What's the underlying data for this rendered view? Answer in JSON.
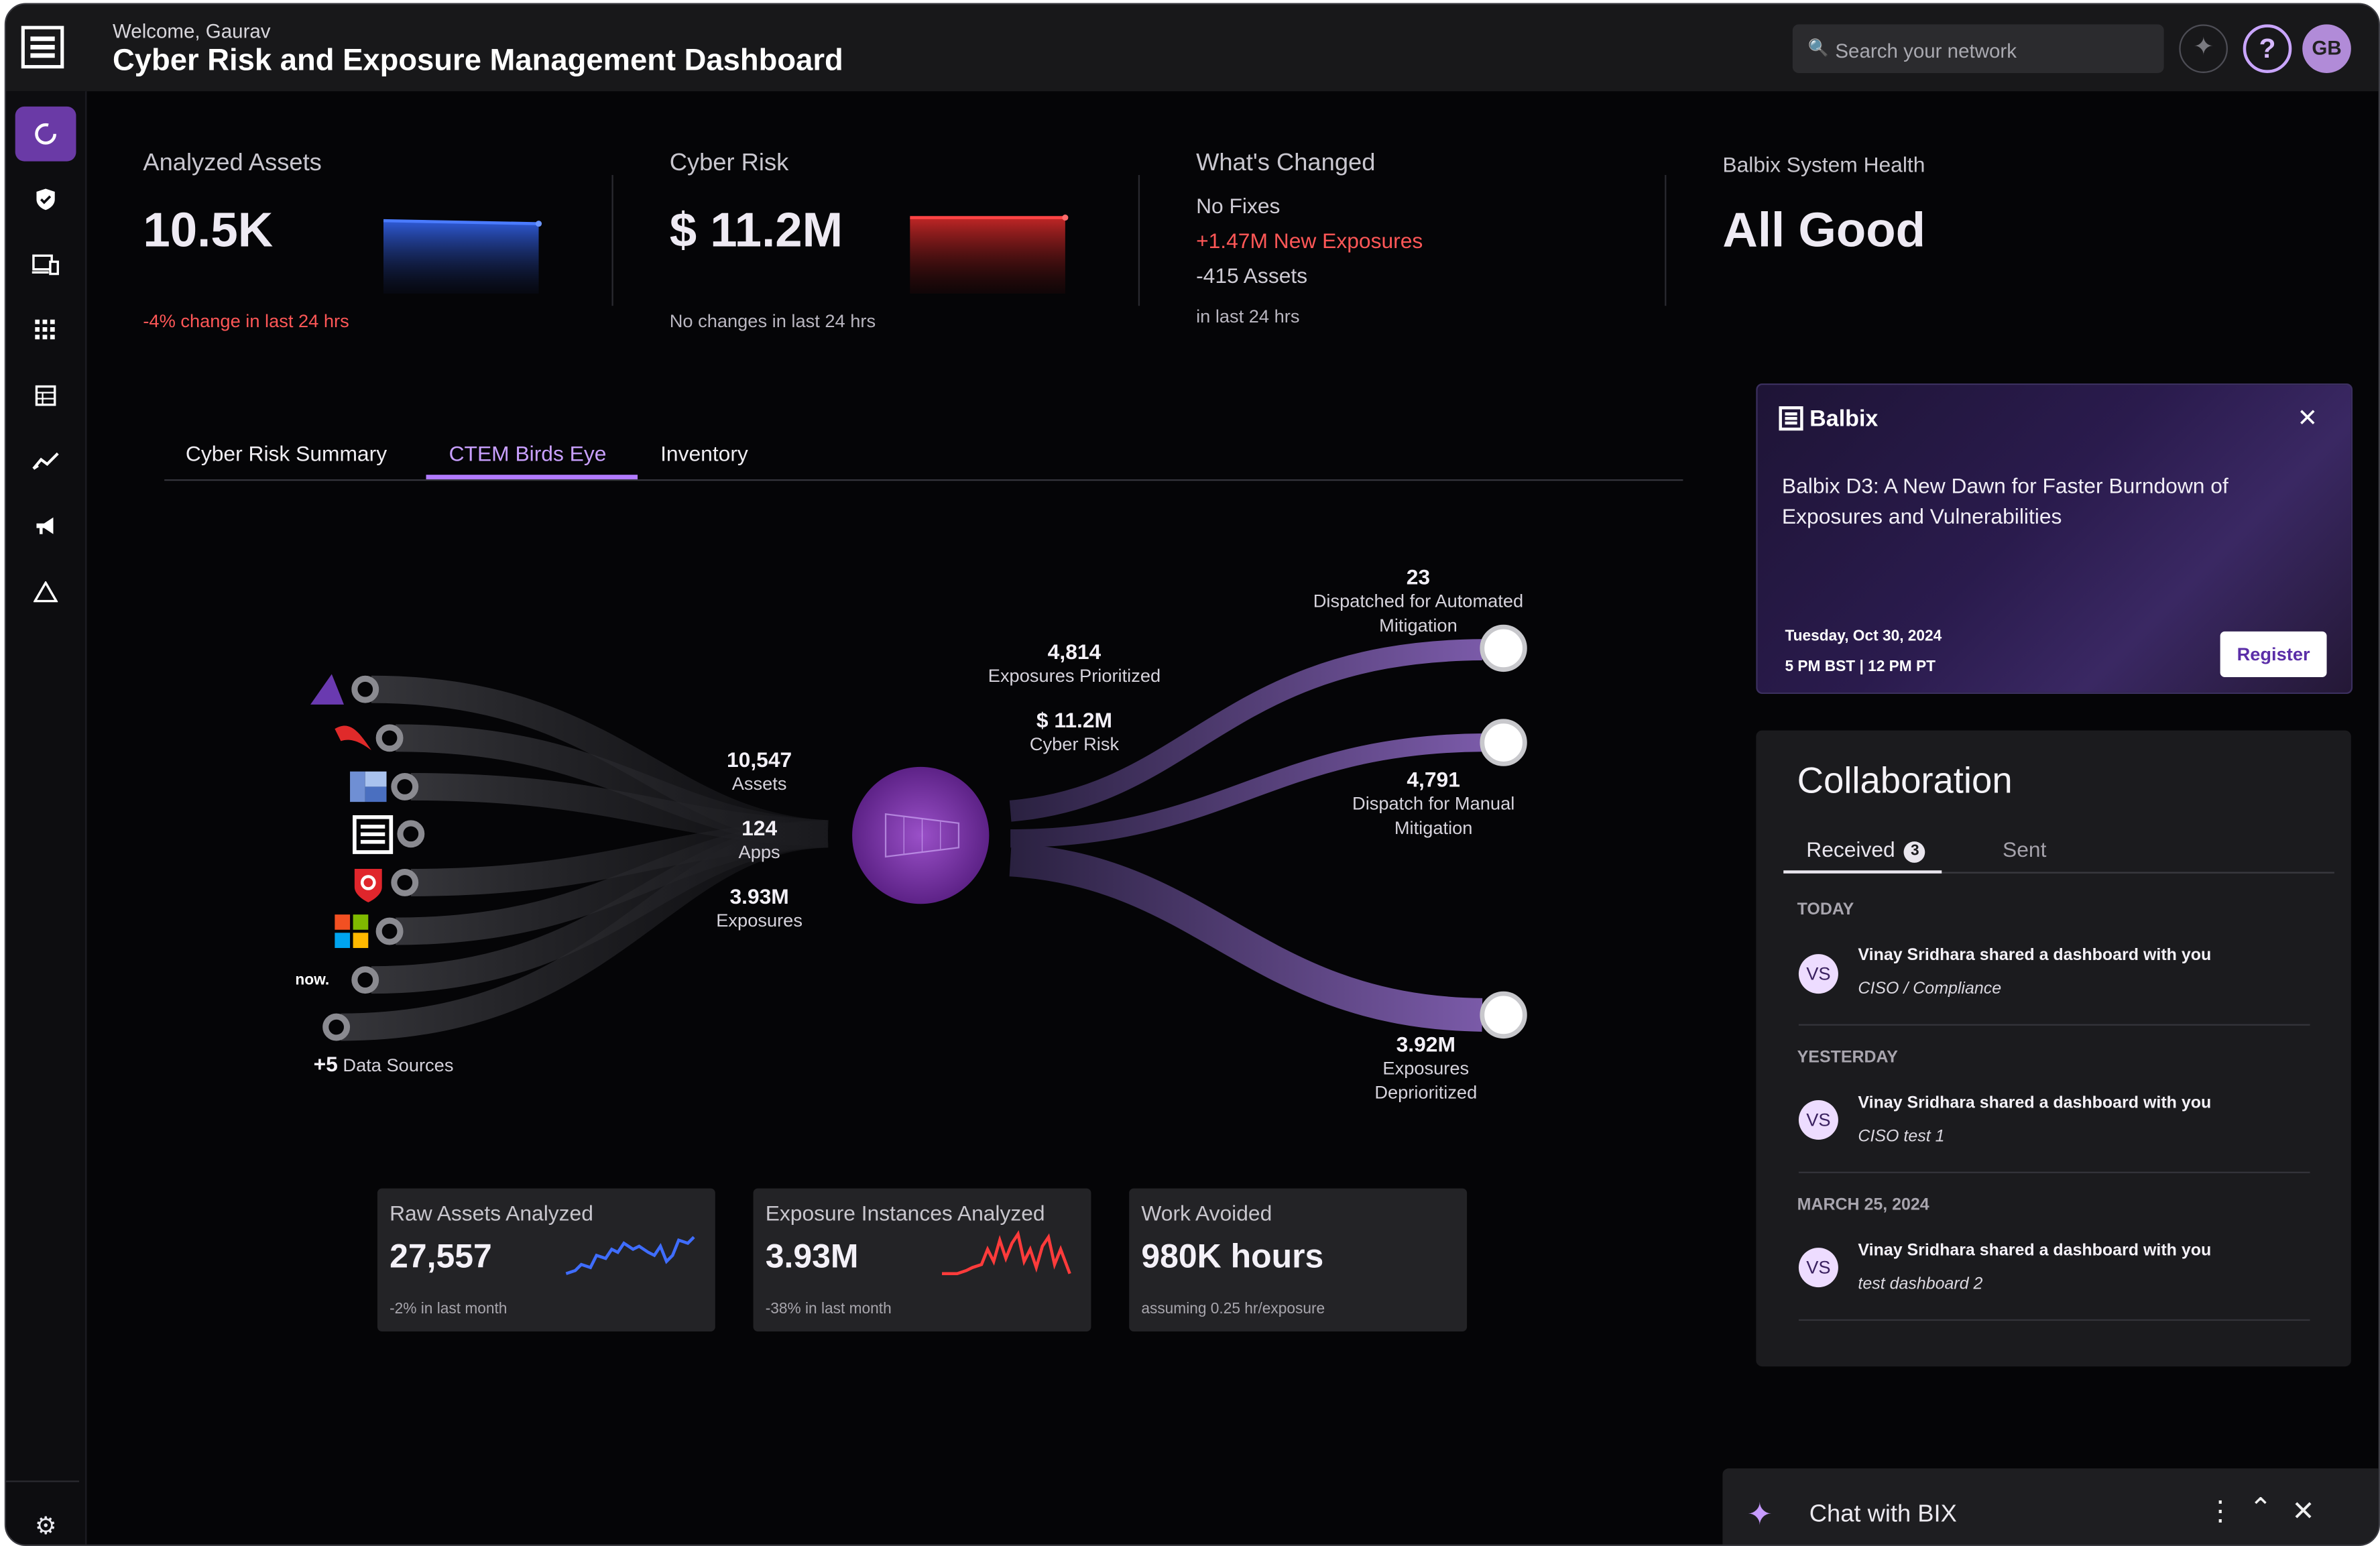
{
  "header": {
    "welcome": "Welcome, Gaurav",
    "title": "Cyber Risk and Exposure Management Dashboard",
    "search_placeholder": "Search your network",
    "avatar_initials": "GB",
    "help_glyph": "?"
  },
  "sidebar": {
    "items": [
      {
        "icon": "dashboard-icon",
        "active": true
      },
      {
        "icon": "shield-check-icon"
      },
      {
        "icon": "devices-icon"
      },
      {
        "icon": "grid-icon"
      },
      {
        "icon": "table-icon"
      },
      {
        "icon": "trend-icon"
      },
      {
        "icon": "megaphone-icon"
      },
      {
        "icon": "warning-triangle-icon"
      }
    ],
    "settings_icon": "gear-icon"
  },
  "stats": {
    "assets": {
      "label": "Analyzed Assets",
      "value": "10.5K",
      "change": "-4% change in last 24 hrs"
    },
    "risk": {
      "label": "Cyber Risk",
      "value": "$ 11.2M",
      "change": "No changes in last 24 hrs"
    },
    "changed": {
      "label": "What's Changed",
      "fixes": "No Fixes",
      "new_exposures": "+1.47M New Exposures",
      "assets": "-415 Assets",
      "period": "in last 24 hrs"
    },
    "health": {
      "label": "Balbix System Health",
      "value": "All Good"
    }
  },
  "tabs": [
    {
      "label": "Cyber Risk Summary",
      "active": false
    },
    {
      "label": "CTEM Birds Eye",
      "active": true
    },
    {
      "label": "Inventory",
      "active": false
    }
  ],
  "flow": {
    "sources_more": "+5",
    "sources_label": "Data Sources",
    "source_now": "now.",
    "assets": {
      "value": "10,547",
      "label": "Assets"
    },
    "apps": {
      "value": "124",
      "label": "Apps"
    },
    "exposures": {
      "value": "3.93M",
      "label": "Exposures"
    },
    "prioritized": {
      "value": "4,814",
      "label": "Exposures Prioritized"
    },
    "risk": {
      "value": "$ 11.2M",
      "label": "Cyber Risk"
    },
    "automated": {
      "value": "23",
      "label_1": "Dispatched for Automated",
      "label_2": "Mitigation"
    },
    "manual": {
      "value": "4,791",
      "label_1": "Dispatch for Manual",
      "label_2": "Mitigation"
    },
    "deprioritized": {
      "value": "3.92M",
      "label_1": "Exposures",
      "label_2": "Deprioritized"
    }
  },
  "mini_cards": {
    "raw_assets": {
      "label": "Raw Assets Analyzed",
      "value": "27,557",
      "change": "-2% in last month"
    },
    "exposure_instances": {
      "label": "Exposure Instances Analyzed",
      "value": "3.93M",
      "change": "-38% in last month"
    },
    "work_avoided": {
      "label": "Work Avoided",
      "value": "980K hours",
      "note": "assuming 0.25 hr/exposure"
    }
  },
  "promo": {
    "brand": "Balbix",
    "title": "Balbix D3: A New Dawn for Faster Burndown of Exposures and Vulnerabilities",
    "date": "Tuesday, Oct 30, 2024",
    "time": "5 PM BST | 12 PM PT",
    "register": "Register"
  },
  "collaboration": {
    "title": "Collaboration",
    "tab_received": "Received",
    "received_count": "3",
    "tab_sent": "Sent",
    "groups": [
      {
        "heading": "TODAY",
        "initials": "VS",
        "text": "Vinay Sridhara shared a dashboard with you",
        "sub": "CISO / Compliance"
      },
      {
        "heading": "YESTERDAY",
        "initials": "VS",
        "text": "Vinay Sridhara shared a dashboard with you",
        "sub": "CISO test 1"
      },
      {
        "heading": "MARCH 25, 2024",
        "initials": "VS",
        "text": "Vinay Sridhara shared a dashboard with you",
        "sub": "test dashboard 2"
      }
    ]
  },
  "chat": {
    "label": "Chat with BIX"
  },
  "colors": {
    "accent": "#b27bff",
    "negative": "#ff5757",
    "positive": "#27d37a",
    "background": "#050507"
  }
}
